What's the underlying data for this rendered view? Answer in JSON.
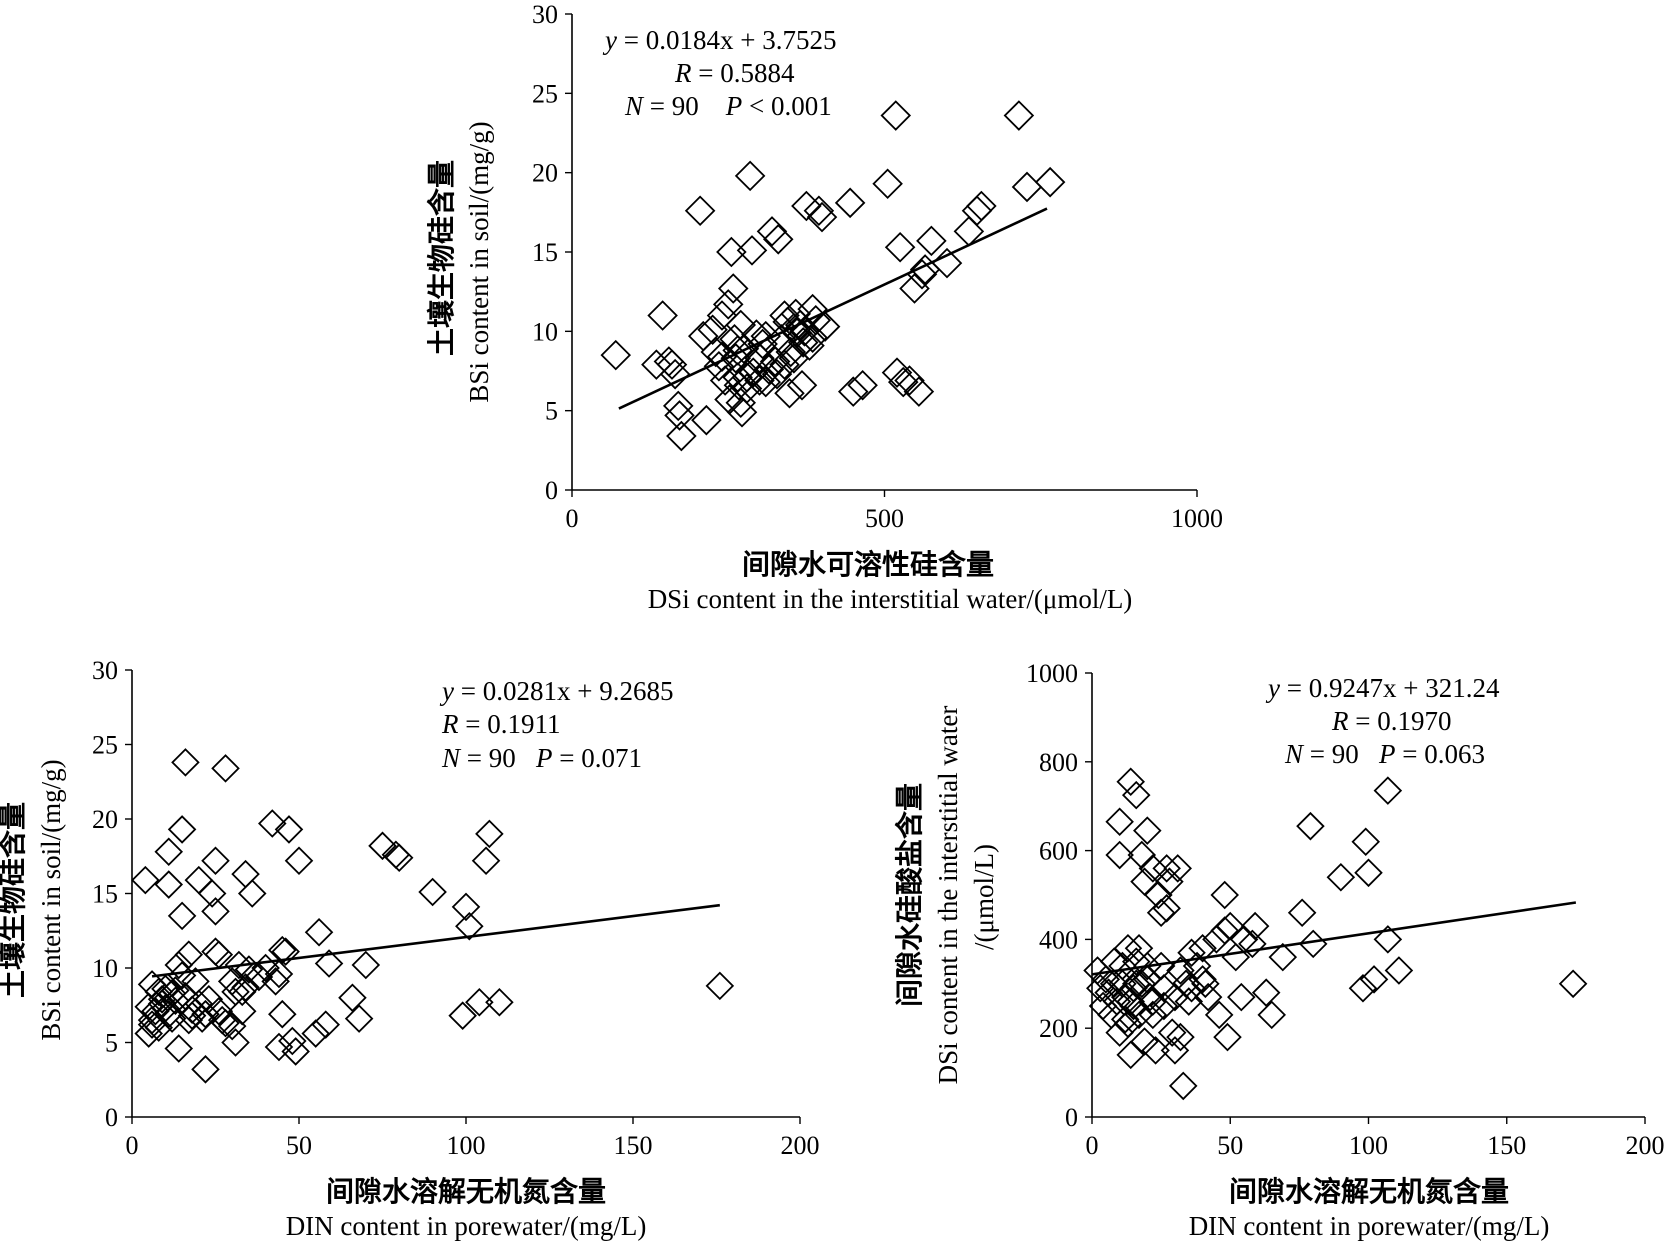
{
  "chart_data": [
    {
      "type": "scatter",
      "id": "top",
      "xlabel_zh": "间隙水可溶性硅含量",
      "xlabel_en": "DSi content in the interstitial water/(μmol/L)",
      "ylabel_zh": "土壤生物硅含量",
      "ylabel_en": "BSi content in soil/(mg/g)",
      "xlim": [
        0,
        1000
      ],
      "ylim": [
        0,
        30
      ],
      "xticks": [
        "0",
        "500",
        "1000"
      ],
      "yticks": [
        "0",
        "5",
        "10",
        "15",
        "20",
        "25",
        "30"
      ],
      "stats": {
        "equation": "y = 0.0184x + 3.7525",
        "r": "R = 0.5884",
        "np": "N = 90    P < 0.001"
      },
      "trendline": {
        "slope": 0.0184,
        "intercept": 3.7525,
        "x_range": [
          75,
          760
        ]
      },
      "points": [
        [
          70,
          8.5
        ],
        [
          145,
          11
        ],
        [
          135,
          7.9
        ],
        [
          155,
          8.1
        ],
        [
          165,
          7.3
        ],
        [
          170,
          5.3
        ],
        [
          172,
          4.7
        ],
        [
          175,
          3.4
        ],
        [
          205,
          17.6
        ],
        [
          210,
          9.7
        ],
        [
          215,
          4.4
        ],
        [
          225,
          10.1
        ],
        [
          230,
          8.7
        ],
        [
          235,
          7.8
        ],
        [
          240,
          11
        ],
        [
          245,
          6.9
        ],
        [
          250,
          11.7
        ],
        [
          252,
          5.7
        ],
        [
          255,
          15
        ],
        [
          258,
          12.7
        ],
        [
          260,
          9.5
        ],
        [
          262,
          8.3
        ],
        [
          265,
          7.1
        ],
        [
          267,
          6.6
        ],
        [
          270,
          5.5
        ],
        [
          272,
          4.9
        ],
        [
          275,
          8.9
        ],
        [
          280,
          6.4
        ],
        [
          285,
          19.8
        ],
        [
          288,
          15.1
        ],
        [
          290,
          7.4
        ],
        [
          295,
          9.8
        ],
        [
          300,
          8.3
        ],
        [
          305,
          9.2
        ],
        [
          310,
          6.8
        ],
        [
          315,
          7.6
        ],
        [
          320,
          16.3
        ],
        [
          325,
          8.1
        ],
        [
          328,
          7.3
        ],
        [
          330,
          15.8
        ],
        [
          335,
          9.5
        ],
        [
          340,
          11
        ],
        [
          345,
          10.6
        ],
        [
          348,
          6.1
        ],
        [
          350,
          8.7
        ],
        [
          355,
          10.2
        ],
        [
          358,
          11.1
        ],
        [
          360,
          9.9
        ],
        [
          365,
          10.4
        ],
        [
          368,
          6.6
        ],
        [
          370,
          9.3
        ],
        [
          372,
          10
        ],
        [
          375,
          17.9
        ],
        [
          380,
          9.1
        ],
        [
          385,
          11.4
        ],
        [
          390,
          10.7
        ],
        [
          395,
          17.6
        ],
        [
          400,
          17.2
        ],
        [
          405,
          10.3
        ],
        [
          445,
          18.1
        ],
        [
          450,
          6.2
        ],
        [
          465,
          6.6
        ],
        [
          505,
          19.3
        ],
        [
          518,
          23.6
        ],
        [
          520,
          7.4
        ],
        [
          525,
          15.3
        ],
        [
          530,
          6.8
        ],
        [
          540,
          6.9
        ],
        [
          548,
          12.7
        ],
        [
          555,
          6.2
        ],
        [
          560,
          13.6
        ],
        [
          565,
          13.9
        ],
        [
          575,
          15.7
        ],
        [
          600,
          14.3
        ],
        [
          635,
          16.3
        ],
        [
          648,
          17.6
        ],
        [
          655,
          17.9
        ],
        [
          715,
          23.6
        ],
        [
          728,
          19.1
        ],
        [
          765,
          19.4
        ],
        [
          160,
          7.9
        ],
        [
          280,
          7.1
        ],
        [
          340,
          7.9
        ],
        [
          310,
          9.7
        ],
        [
          270,
          10.4
        ],
        [
          240,
          8.4
        ],
        [
          300,
          6.9
        ],
        [
          355,
          8.3
        ],
        [
          385,
          9.6
        ],
        [
          265,
          8.8
        ]
      ]
    },
    {
      "type": "scatter",
      "id": "bottom-left",
      "xlabel_zh": "间隙水溶解无机氮含量",
      "xlabel_en": "DIN content in porewater/(mg/L)",
      "ylabel_zh": "土壤生物硅含量",
      "ylabel_en": "BSi content in soil/(mg/g)",
      "xlim": [
        0,
        200
      ],
      "ylim": [
        0,
        30
      ],
      "xticks": [
        "0",
        "50",
        "100",
        "150",
        "200"
      ],
      "yticks": [
        "0",
        "5",
        "10",
        "15",
        "20",
        "25",
        "30"
      ],
      "stats": {
        "equation": "y = 0.0281x + 9.2685",
        "r": "R = 0.1911",
        "np": "N = 90   P = 0.071"
      },
      "trendline": {
        "slope": 0.0281,
        "intercept": 9.2685,
        "x_range": [
          6,
          176
        ]
      },
      "points": [
        [
          4,
          15.9
        ],
        [
          5,
          7.4
        ],
        [
          5,
          5.6
        ],
        [
          6,
          8.9
        ],
        [
          6,
          6.2
        ],
        [
          7,
          7.1
        ],
        [
          8,
          8.4
        ],
        [
          8,
          6
        ],
        [
          9,
          7.6
        ],
        [
          10,
          8.6
        ],
        [
          10,
          7.3
        ],
        [
          11,
          17.8
        ],
        [
          11,
          15.6
        ],
        [
          12,
          8.3
        ],
        [
          12,
          6.6
        ],
        [
          13,
          7.8
        ],
        [
          14,
          10.2
        ],
        [
          14,
          4.6
        ],
        [
          15,
          19.3
        ],
        [
          15,
          13.5
        ],
        [
          15,
          9.5
        ],
        [
          16,
          23.8
        ],
        [
          16,
          8.1
        ],
        [
          17,
          10.9
        ],
        [
          17,
          6.5
        ],
        [
          18,
          6.8
        ],
        [
          19,
          9.1
        ],
        [
          20,
          15.9
        ],
        [
          20,
          7.6
        ],
        [
          21,
          6.6
        ],
        [
          22,
          3.2
        ],
        [
          23,
          7.9
        ],
        [
          24,
          15
        ],
        [
          25,
          17.2
        ],
        [
          25,
          13.8
        ],
        [
          25,
          11.1
        ],
        [
          26,
          10.9
        ],
        [
          26,
          7.1
        ],
        [
          27,
          6.5
        ],
        [
          28,
          23.4
        ],
        [
          28,
          6.3
        ],
        [
          30,
          6.1
        ],
        [
          31,
          8.4
        ],
        [
          31,
          5
        ],
        [
          32,
          10.2
        ],
        [
          33,
          8.4
        ],
        [
          33,
          7.1
        ],
        [
          34,
          16.3
        ],
        [
          34,
          8.7
        ],
        [
          35,
          9.9
        ],
        [
          36,
          15
        ],
        [
          40,
          10
        ],
        [
          42,
          19.7
        ],
        [
          43,
          9.1
        ],
        [
          44,
          4.7
        ],
        [
          44,
          9.6
        ],
        [
          45,
          11.2
        ],
        [
          45,
          6.9
        ],
        [
          46,
          11.1
        ],
        [
          47,
          19.3
        ],
        [
          48,
          5.1
        ],
        [
          49,
          4.4
        ],
        [
          50,
          17.2
        ],
        [
          55,
          5.6
        ],
        [
          56,
          12.4
        ],
        [
          58,
          6.2
        ],
        [
          59,
          10.3
        ],
        [
          66,
          8
        ],
        [
          68,
          6.6
        ],
        [
          70,
          10.2
        ],
        [
          75,
          18.2
        ],
        [
          79,
          17.6
        ],
        [
          80,
          17.4
        ],
        [
          90,
          15.1
        ],
        [
          99,
          6.8
        ],
        [
          100,
          14.1
        ],
        [
          101,
          12.8
        ],
        [
          104,
          7.7
        ],
        [
          106,
          17.2
        ],
        [
          107,
          19
        ],
        [
          110,
          7.7
        ],
        [
          176,
          8.8
        ],
        [
          9,
          7.9
        ],
        [
          13,
          8.5
        ],
        [
          18,
          7.2
        ],
        [
          22,
          6.9
        ],
        [
          30,
          9.1
        ],
        [
          38,
          9.4
        ],
        [
          6,
          6.5
        ],
        [
          11,
          6.9
        ]
      ]
    },
    {
      "type": "scatter",
      "id": "bottom-right",
      "xlabel_zh": "间隙水溶解无机氮含量",
      "xlabel_en": "DIN content in porewater/(mg/L)",
      "ylabel_zh": "间隙水硅酸盐含量",
      "ylabel_en": "DSi content in the interstitial water",
      "ylabel_en2": "/(μmol/L)",
      "xlim": [
        0,
        200
      ],
      "ylim": [
        0,
        1000
      ],
      "xticks": [
        "0",
        "50",
        "100",
        "150",
        "200"
      ],
      "yticks": [
        "0",
        "200",
        "400",
        "600",
        "800",
        "1000"
      ],
      "stats": {
        "equation": "y = 0.9247x + 321.24",
        "r": "R = 0.1970",
        "np": "N = 90   P = 0.063"
      },
      "trendline": {
        "slope": 0.9247,
        "intercept": 321.24,
        "x_range": [
          0,
          175
        ]
      },
      "points": [
        [
          2,
          330
        ],
        [
          3,
          290
        ],
        [
          4,
          250
        ],
        [
          5,
          310
        ],
        [
          6,
          280
        ],
        [
          7,
          230
        ],
        [
          8,
          300
        ],
        [
          9,
          260
        ],
        [
          10,
          665
        ],
        [
          10,
          590
        ],
        [
          10,
          190
        ],
        [
          11,
          340
        ],
        [
          12,
          270
        ],
        [
          12,
          220
        ],
        [
          13,
          380
        ],
        [
          13,
          210
        ],
        [
          14,
          755
        ],
        [
          14,
          140
        ],
        [
          15,
          290
        ],
        [
          15,
          250
        ],
        [
          16,
          725
        ],
        [
          16,
          350
        ],
        [
          17,
          380
        ],
        [
          17,
          230
        ],
        [
          18,
          590
        ],
        [
          18,
          300
        ],
        [
          19,
          530
        ],
        [
          19,
          170
        ],
        [
          20,
          645
        ],
        [
          20,
          340
        ],
        [
          21,
          270
        ],
        [
          22,
          560
        ],
        [
          22,
          230
        ],
        [
          23,
          150
        ],
        [
          24,
          500
        ],
        [
          25,
          460
        ],
        [
          25,
          340
        ],
        [
          26,
          250
        ],
        [
          27,
          560
        ],
        [
          27,
          470
        ],
        [
          28,
          530
        ],
        [
          29,
          190
        ],
        [
          30,
          270
        ],
        [
          30,
          150
        ],
        [
          31,
          560
        ],
        [
          32,
          180
        ],
        [
          33,
          70
        ],
        [
          34,
          300
        ],
        [
          35,
          260
        ],
        [
          36,
          370
        ],
        [
          38,
          340
        ],
        [
          40,
          380
        ],
        [
          41,
          300
        ],
        [
          42,
          270
        ],
        [
          45,
          400
        ],
        [
          46,
          230
        ],
        [
          48,
          500
        ],
        [
          48,
          420
        ],
        [
          49,
          180
        ],
        [
          50,
          430
        ],
        [
          52,
          360
        ],
        [
          54,
          270
        ],
        [
          55,
          400
        ],
        [
          58,
          390
        ],
        [
          59,
          430
        ],
        [
          63,
          280
        ],
        [
          65,
          230
        ],
        [
          69,
          360
        ],
        [
          76,
          460
        ],
        [
          79,
          655
        ],
        [
          80,
          390
        ],
        [
          90,
          540
        ],
        [
          98,
          290
        ],
        [
          99,
          620
        ],
        [
          100,
          550
        ],
        [
          102,
          310
        ],
        [
          107,
          400
        ],
        [
          107,
          735
        ],
        [
          111,
          330
        ],
        [
          174,
          300
        ],
        [
          8,
          350
        ],
        [
          11,
          300
        ],
        [
          14,
          260
        ],
        [
          20,
          310
        ],
        [
          26,
          290
        ],
        [
          32,
          330
        ],
        [
          40,
          310
        ],
        [
          16,
          300
        ],
        [
          22,
          260
        ],
        [
          36,
          290
        ]
      ]
    }
  ]
}
